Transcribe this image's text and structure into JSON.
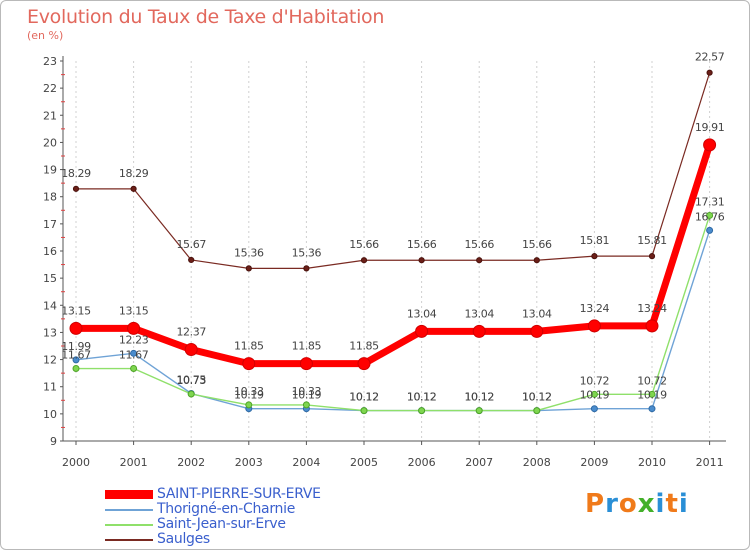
{
  "header": {
    "title": "Evolution du Taux de Taxe d'Habitation",
    "subtitle": "(en %)"
  },
  "chart_data": {
    "type": "line",
    "title": "Evolution du Taux de Taxe d'Habitation",
    "ylabel": "(en %)",
    "xlabel": "",
    "ylim": [
      9,
      23
    ],
    "yticks": [
      9,
      10,
      11,
      12,
      13,
      14,
      15,
      16,
      17,
      18,
      19,
      20,
      21,
      22,
      23
    ],
    "categories": [
      "2000",
      "2001",
      "2002",
      "2003",
      "2004",
      "2005",
      "2006",
      "2007",
      "2008",
      "2009",
      "2010",
      "2011"
    ],
    "grid": "vertical",
    "legend_position": "bottom-left",
    "series": [
      {
        "name": "SAINT-PIERRE-SUR-ERVE",
        "color": "#ff0000",
        "values": [
          13.15,
          13.15,
          12.37,
          11.85,
          11.85,
          11.85,
          13.04,
          13.04,
          13.04,
          13.24,
          13.24,
          19.91
        ],
        "labels": [
          "13.15",
          "13.15",
          "12.37",
          "11.85",
          "11.85",
          "11.85",
          "13.04",
          "13.04",
          "13.04",
          "13.24",
          "13.24",
          "19.91"
        ]
      },
      {
        "name": "Thorigné-en-Charnie",
        "color": "#6fa3d6",
        "values": [
          11.99,
          12.23,
          10.75,
          10.19,
          10.19,
          10.12,
          10.12,
          10.12,
          10.12,
          10.19,
          10.19,
          16.76
        ],
        "labels": [
          "11.99",
          "12.23",
          "10.75",
          "10.19",
          "10.19",
          "10.12",
          "10.12",
          "10.12",
          "10.12",
          "10.19",
          "10.19",
          "16.76"
        ]
      },
      {
        "name": "Saint-Jean-sur-Erve",
        "color": "#8fe06a",
        "values": [
          11.67,
          11.67,
          10.73,
          10.33,
          10.33,
          10.12,
          10.12,
          10.12,
          10.12,
          10.72,
          10.72,
          17.31
        ],
        "labels": [
          "11.67",
          "11.67",
          "10.73",
          "10.33",
          "10.33",
          "10.12",
          "10.12",
          "10.12",
          "10.12",
          "10.72",
          "10.72",
          "17.31"
        ]
      },
      {
        "name": "Saulges",
        "color": "#7a2a22",
        "values": [
          18.29,
          18.29,
          15.67,
          15.36,
          15.36,
          15.66,
          15.66,
          15.66,
          15.66,
          15.81,
          15.81,
          22.57
        ],
        "labels": [
          "18.29",
          "18.29",
          "15.67",
          "15.36",
          "15.36",
          "15.66",
          "15.66",
          "15.66",
          "15.66",
          "15.81",
          "15.81",
          "22.57"
        ]
      }
    ]
  },
  "logo": {
    "text": "Proxiti",
    "colors": [
      "#f07a1a",
      "#2a8fd6",
      "#f07a1a",
      "#43b02a",
      "#2a8fd6",
      "#f07a1a",
      "#2a8fd6"
    ]
  }
}
